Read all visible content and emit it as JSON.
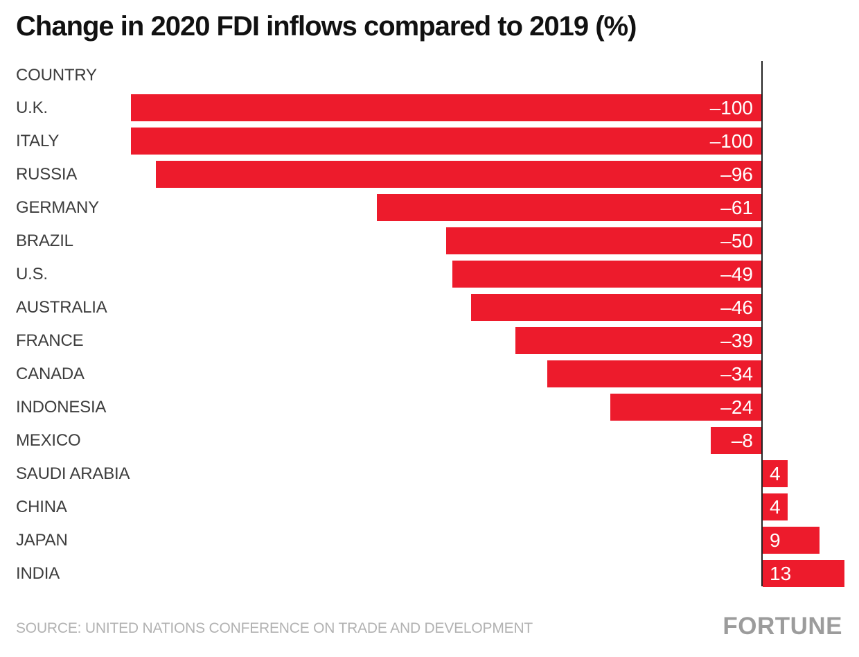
{
  "title": "Change in 2020 FDI inflows compared to 2019 (%)",
  "column_header": "COUNTRY",
  "source": "SOURCE: UNITED NATIONS CONFERENCE ON TRADE AND DEVELOPMENT",
  "brand": "FORTUNE",
  "colors": {
    "bar": "#ED1B2C",
    "axis": "#222222",
    "label_text": "#3d3d3d",
    "value_text": "#ffffff",
    "muted_text": "#b2b2b2",
    "brand_text": "#9c9c9c",
    "background": "#ffffff"
  },
  "chart_data": {
    "type": "bar",
    "orientation": "horizontal",
    "title": "Change in 2020 FDI inflows compared to 2019 (%)",
    "categories": [
      "U.K.",
      "ITALY",
      "RUSSIA",
      "GERMANY",
      "BRAZIL",
      "U.S.",
      "AUSTRALIA",
      "FRANCE",
      "CANADA",
      "INDONESIA",
      "MEXICO",
      "SAUDI ARABIA",
      "CHINA",
      "JAPAN",
      "INDIA"
    ],
    "values": [
      -100,
      -100,
      -96,
      -61,
      -50,
      -49,
      -46,
      -39,
      -34,
      -24,
      -8,
      4,
      4,
      9,
      13
    ],
    "value_labels": [
      "–100",
      "–100",
      "–96",
      "–61",
      "–50",
      "–49",
      "–46",
      "–39",
      "–34",
      "–24",
      "–8",
      "4",
      "4",
      "9",
      "13"
    ],
    "xlabel": "",
    "ylabel": "COUNTRY",
    "xlim": [
      -100,
      13
    ],
    "baseline": 0,
    "grid": false,
    "legend": false,
    "value_label_position": "inside-end-near-baseline"
  }
}
